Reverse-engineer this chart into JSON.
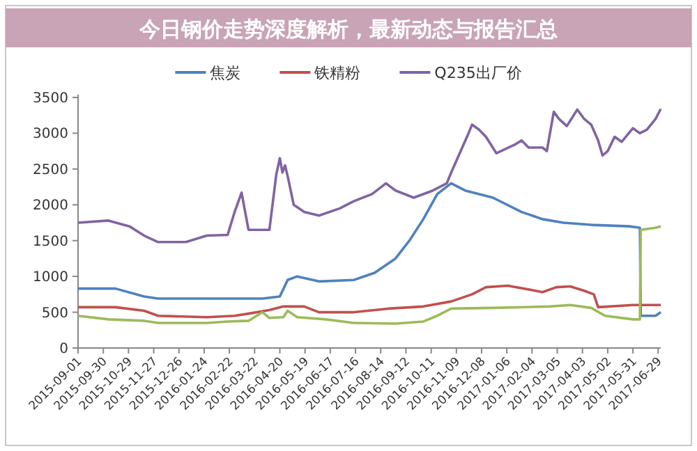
{
  "chart_data": {
    "type": "line",
    "title": "今日钢价走势深度解析，最新动态与报告汇总",
    "legend": "top",
    "xlim": [
      "2015-09-01",
      "2017-07-02"
    ],
    "ylim": [
      0,
      3500
    ],
    "yticks": [
      0,
      500,
      1000,
      1500,
      2000,
      2500,
      3000,
      3500
    ],
    "xticks": [
      "2015-09-01",
      "2015-09-30",
      "2015-10-29",
      "2015-11-27",
      "2015-12-26",
      "2016-01-24",
      "2016-02-22",
      "2016-03-22",
      "2016-04-20",
      "2016-05-19",
      "2016-06-17",
      "2016-07-16",
      "2016-08-14",
      "2016-09-12",
      "2016-10-11",
      "2016-11-09",
      "2016-12-08",
      "2017-01-06",
      "2017-02-04",
      "2017-03-05",
      "2017-04-03",
      "2017-05-02",
      "2017-05-31",
      "2017-06-29"
    ],
    "series": [
      {
        "name": "焦炭",
        "color": "#4f81bd",
        "x": [
          "2015-09-01",
          "2015-10-14",
          "2015-11-16",
          "2015-12-02",
          "2016-03-31",
          "2016-04-20",
          "2016-04-29",
          "2016-05-10",
          "2016-06-04",
          "2016-07-14",
          "2016-08-07",
          "2016-08-31",
          "2016-09-16",
          "2016-10-02",
          "2016-10-18",
          "2016-11-03",
          "2016-11-19",
          "2016-12-21",
          "2017-01-23",
          "2017-02-16",
          "2017-03-12",
          "2017-04-13",
          "2017-05-26",
          "2017-06-08",
          "2017-06-09",
          "2017-06-26",
          "2017-07-02"
        ],
        "values": [
          830,
          830,
          720,
          690,
          690,
          720,
          950,
          1000,
          930,
          950,
          1050,
          1250,
          1500,
          1800,
          2150,
          2300,
          2200,
          2100,
          1900,
          1800,
          1750,
          1720,
          1700,
          1680,
          450,
          450,
          500
        ]
      },
      {
        "name": "铁精粉",
        "color": "#c0504d",
        "x": [
          "2015-09-01",
          "2015-10-14",
          "2015-11-16",
          "2015-12-02",
          "2016-01-27",
          "2016-02-28",
          "2016-03-15",
          "2016-04-08",
          "2016-04-24",
          "2016-05-18",
          "2016-06-04",
          "2016-07-14",
          "2016-08-23",
          "2016-10-02",
          "2016-11-03",
          "2016-11-27",
          "2016-12-13",
          "2017-01-07",
          "2017-02-08",
          "2017-02-16",
          "2017-03-04",
          "2017-03-20",
          "2017-04-05",
          "2017-04-16",
          "2017-04-21",
          "2017-05-31",
          "2017-07-02"
        ],
        "values": [
          570,
          570,
          520,
          450,
          430,
          450,
          480,
          530,
          580,
          580,
          500,
          500,
          550,
          580,
          650,
          750,
          850,
          870,
          800,
          780,
          850,
          860,
          800,
          750,
          570,
          600,
          600
        ]
      },
      {
        "color": "#9bbb59",
        "x": [
          "2015-09-01",
          "2015-10-06",
          "2015-11-16",
          "2015-12-02",
          "2016-01-27",
          "2016-02-20",
          "2016-03-15",
          "2016-03-31",
          "2016-04-08",
          "2016-04-24",
          "2016-04-29",
          "2016-05-10",
          "2016-06-12",
          "2016-07-14",
          "2016-08-31",
          "2016-10-02",
          "2016-10-18",
          "2016-11-03",
          "2016-12-21",
          "2017-02-24",
          "2017-03-20",
          "2017-04-13",
          "2017-04-29",
          "2017-05-31",
          "2017-06-08",
          "2017-06-09",
          "2017-06-26",
          "2017-07-02"
        ],
        "values": [
          450,
          400,
          380,
          350,
          350,
          370,
          380,
          500,
          420,
          430,
          520,
          430,
          400,
          350,
          340,
          370,
          450,
          550,
          560,
          580,
          600,
          560,
          450,
          400,
          400,
          1650,
          1680,
          1700
        ]
      },
      {
        "name": "Q235出厂价",
        "color": "#8064a2",
        "x": [
          "2015-09-01",
          "2015-10-06",
          "2015-10-30",
          "2015-11-16",
          "2015-12-02",
          "2016-01-03",
          "2016-01-27",
          "2016-02-20",
          "2016-02-28",
          "2016-03-07",
          "2016-03-15",
          "2016-04-08",
          "2016-04-16",
          "2016-04-20",
          "2016-04-23",
          "2016-04-26",
          "2016-04-29",
          "2016-05-06",
          "2016-05-18",
          "2016-06-04",
          "2016-06-28",
          "2016-07-14",
          "2016-08-04",
          "2016-08-20",
          "2016-08-31",
          "2016-09-21",
          "2016-10-13",
          "2016-10-29",
          "2016-11-03",
          "2016-11-23",
          "2016-11-27",
          "2016-12-05",
          "2016-12-13",
          "2016-12-25",
          "2017-01-15",
          "2017-01-23",
          "2017-01-31",
          "2017-02-16",
          "2017-02-21",
          "2017-03-01",
          "2017-03-07",
          "2017-03-16",
          "2017-03-28",
          "2017-04-05",
          "2017-04-13",
          "2017-04-21",
          "2017-04-26",
          "2017-05-02",
          "2017-05-10",
          "2017-05-18",
          "2017-05-31",
          "2017-06-08",
          "2017-06-16",
          "2017-06-26",
          "2017-07-02"
        ],
        "values": [
          1750,
          1780,
          1700,
          1570,
          1480,
          1480,
          1570,
          1580,
          1900,
          2170,
          1650,
          1650,
          2430,
          2650,
          2450,
          2550,
          2400,
          2000,
          1900,
          1850,
          1950,
          2050,
          2150,
          2300,
          2200,
          2100,
          2200,
          2300,
          2450,
          3000,
          3120,
          3050,
          2950,
          2720,
          2840,
          2900,
          2800,
          2800,
          2750,
          3300,
          3200,
          3100,
          3330,
          3200,
          3120,
          2900,
          2690,
          2750,
          2950,
          2880,
          3070,
          3000,
          3050,
          3200,
          3340
        ]
      }
    ]
  }
}
